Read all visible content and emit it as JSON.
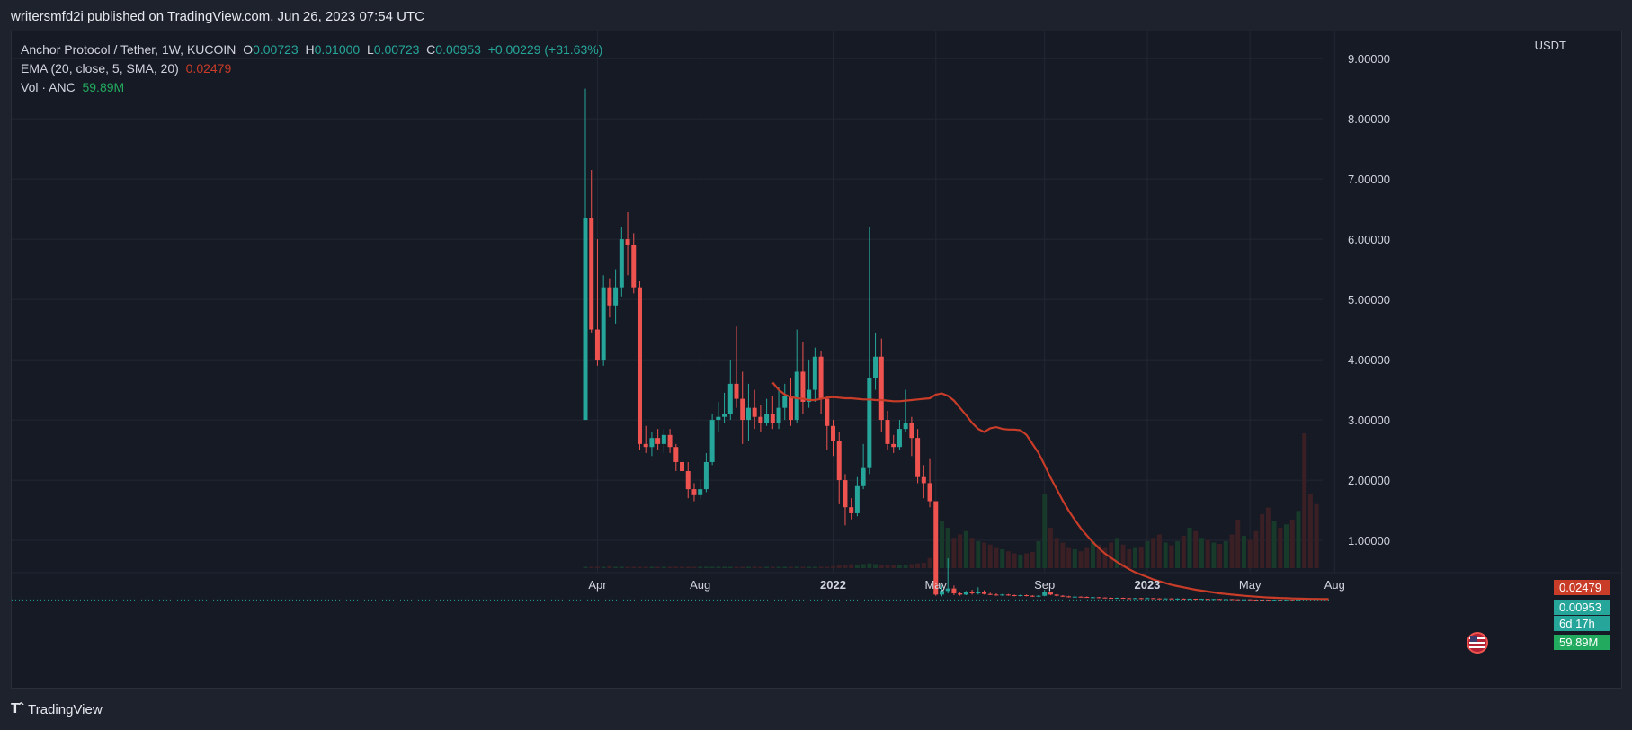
{
  "publication": "writersmfd2i published on TradingView.com, Jun 26, 2023 07:54 UTC",
  "legend": {
    "symbol": "Anchor Protocol / Tether, 1W, KUCOIN",
    "o_label": "O",
    "o": "0.00723",
    "h_label": "H",
    "h": "0.01000",
    "l_label": "L",
    "l": "0.00723",
    "c_label": "C",
    "c": "0.00953",
    "change": "+0.00229 (+31.63%)",
    "ema_label": "EMA (20, close, 5, SMA, 20)",
    "ema_value": "0.02479",
    "vol_label": "Vol · ANC",
    "vol_value": "59.89M"
  },
  "currency": "USDT",
  "badges": {
    "ema": "0.02479",
    "price": "0.00953",
    "countdown": "6d 17h",
    "volume": "59.89M"
  },
  "footer": {
    "brand": "TradingView"
  },
  "colors": {
    "up": "#26a69a",
    "down": "#ef5350",
    "ema": "#c83c28",
    "volume_green": "#22ab5e",
    "grid": "#232733"
  },
  "chart_data": {
    "type": "candlestick",
    "y_axis": {
      "ticks": [
        "9.00000",
        "8.00000",
        "7.00000",
        "6.00000",
        "5.00000",
        "4.00000",
        "3.00000",
        "2.00000",
        "1.00000"
      ],
      "range": [
        -0.85,
        9.3
      ],
      "unit": "USDT"
    },
    "x_axis": {
      "ticks": [
        {
          "label": "Apr",
          "idx": 2,
          "bold": false
        },
        {
          "label": "Aug",
          "idx": 19,
          "bold": false
        },
        {
          "label": "2022",
          "idx": 41,
          "bold": true
        },
        {
          "label": "May",
          "idx": 58,
          "bold": false
        },
        {
          "label": "Sep",
          "idx": 76,
          "bold": false
        },
        {
          "label": "2023",
          "idx": 93,
          "bold": true
        },
        {
          "label": "May",
          "idx": 110,
          "bold": false
        },
        {
          "label": "Aug",
          "idx": 124,
          "bold": false
        }
      ]
    },
    "candles": [
      [
        3.0,
        6.35,
        8.5,
        3.0
      ],
      [
        6.35,
        4.5,
        7.15,
        4.45
      ],
      [
        4.5,
        4.0,
        6.0,
        3.9
      ],
      [
        4.0,
        5.2,
        5.4,
        3.9
      ],
      [
        5.2,
        4.9,
        5.35,
        4.7
      ],
      [
        4.9,
        5.2,
        5.5,
        4.6
      ],
      [
        5.2,
        6.0,
        6.2,
        5.05
      ],
      [
        6.0,
        5.9,
        6.45,
        5.4
      ],
      [
        5.9,
        5.2,
        6.1,
        5.1
      ],
      [
        5.2,
        2.6,
        5.3,
        2.5
      ],
      [
        2.6,
        2.55,
        2.9,
        2.45
      ],
      [
        2.55,
        2.7,
        2.8,
        2.4
      ],
      [
        2.7,
        2.6,
        2.85,
        2.5
      ],
      [
        2.6,
        2.75,
        2.85,
        2.45
      ],
      [
        2.75,
        2.55,
        2.85,
        2.45
      ],
      [
        2.55,
        2.3,
        2.6,
        2.15
      ],
      [
        2.3,
        2.15,
        2.4,
        2.0
      ],
      [
        2.15,
        1.85,
        2.3,
        1.7
      ],
      [
        1.85,
        1.75,
        1.95,
        1.65
      ],
      [
        1.75,
        1.85,
        2.0,
        1.7
      ],
      [
        1.85,
        2.3,
        2.45,
        1.8
      ],
      [
        2.3,
        3.0,
        3.1,
        2.25
      ],
      [
        3.0,
        3.05,
        3.3,
        2.8
      ],
      [
        3.05,
        3.1,
        3.45,
        2.95
      ],
      [
        3.1,
        3.6,
        4.0,
        3.0
      ],
      [
        3.6,
        3.35,
        4.55,
        3.2
      ],
      [
        3.35,
        3.0,
        3.8,
        2.6
      ],
      [
        3.0,
        3.2,
        3.6,
        2.65
      ],
      [
        3.2,
        3.05,
        3.5,
        2.85
      ],
      [
        3.05,
        2.95,
        3.25,
        2.8
      ],
      [
        2.95,
        3.1,
        3.35,
        2.9
      ],
      [
        3.1,
        2.95,
        3.4,
        2.85
      ],
      [
        2.95,
        3.2,
        3.55,
        2.85
      ],
      [
        3.2,
        3.4,
        3.6,
        3.0
      ],
      [
        3.4,
        3.0,
        3.7,
        2.9
      ],
      [
        3.0,
        3.8,
        4.5,
        2.95
      ],
      [
        3.8,
        3.3,
        4.3,
        3.1
      ],
      [
        3.3,
        3.5,
        4.0,
        3.2
      ],
      [
        3.5,
        4.05,
        4.2,
        3.3
      ],
      [
        4.05,
        3.35,
        4.15,
        3.1
      ],
      [
        3.35,
        2.9,
        3.4,
        2.5
      ],
      [
        2.9,
        2.65,
        3.0,
        2.4
      ],
      [
        2.65,
        2.0,
        2.8,
        1.6
      ],
      [
        2.0,
        1.55,
        2.1,
        1.25
      ],
      [
        1.55,
        1.45,
        1.7,
        1.35
      ],
      [
        1.45,
        1.9,
        2.05,
        1.4
      ],
      [
        1.9,
        2.2,
        2.6,
        1.85
      ],
      [
        2.2,
        3.7,
        6.2,
        2.1
      ],
      [
        3.7,
        4.05,
        4.45,
        3.5
      ],
      [
        4.05,
        3.0,
        4.35,
        2.8
      ],
      [
        3.0,
        2.6,
        3.15,
        2.5
      ],
      [
        2.6,
        2.55,
        2.75,
        2.45
      ],
      [
        2.55,
        2.85,
        3.0,
        2.5
      ],
      [
        2.85,
        2.95,
        3.5,
        2.8
      ],
      [
        2.95,
        2.7,
        3.05,
        2.4
      ],
      [
        2.7,
        2.05,
        2.85,
        1.95
      ],
      [
        2.05,
        1.95,
        2.25,
        1.7
      ],
      [
        1.95,
        1.65,
        2.35,
        1.55
      ],
      [
        1.65,
        0.1,
        1.65,
        0.08
      ],
      [
        0.1,
        0.16,
        0.25,
        0.07
      ],
      [
        0.16,
        0.2,
        0.7,
        0.12
      ],
      [
        0.2,
        0.12,
        0.25,
        0.09
      ],
      [
        0.12,
        0.1,
        0.15,
        0.08
      ],
      [
        0.1,
        0.14,
        0.16,
        0.09
      ],
      [
        0.14,
        0.12,
        0.18,
        0.1
      ],
      [
        0.12,
        0.15,
        0.22,
        0.1
      ],
      [
        0.15,
        0.11,
        0.17,
        0.1
      ],
      [
        0.11,
        0.1,
        0.13,
        0.09
      ],
      [
        0.1,
        0.09,
        0.12,
        0.08
      ],
      [
        0.09,
        0.1,
        0.11,
        0.08
      ],
      [
        0.1,
        0.09,
        0.11,
        0.08
      ],
      [
        0.09,
        0.08,
        0.1,
        0.07
      ],
      [
        0.08,
        0.09,
        0.1,
        0.07
      ],
      [
        0.09,
        0.08,
        0.1,
        0.07
      ],
      [
        0.08,
        0.07,
        0.09,
        0.06
      ],
      [
        0.07,
        0.08,
        0.09,
        0.06
      ],
      [
        0.08,
        0.14,
        0.18,
        0.07
      ],
      [
        0.14,
        0.1,
        0.15,
        0.09
      ],
      [
        0.1,
        0.08,
        0.11,
        0.07
      ],
      [
        0.08,
        0.07,
        0.09,
        0.06
      ],
      [
        0.07,
        0.06,
        0.08,
        0.05
      ],
      [
        0.06,
        0.065,
        0.08,
        0.05
      ],
      [
        0.065,
        0.06,
        0.07,
        0.05
      ],
      [
        0.06,
        0.05,
        0.07,
        0.045
      ],
      [
        0.05,
        0.055,
        0.06,
        0.045
      ],
      [
        0.055,
        0.05,
        0.06,
        0.04
      ],
      [
        0.05,
        0.045,
        0.055,
        0.04
      ],
      [
        0.045,
        0.04,
        0.05,
        0.035
      ],
      [
        0.04,
        0.045,
        0.05,
        0.035
      ],
      [
        0.045,
        0.04,
        0.05,
        0.035
      ],
      [
        0.04,
        0.035,
        0.045,
        0.03
      ],
      [
        0.035,
        0.04,
        0.045,
        0.03
      ],
      [
        0.04,
        0.035,
        0.045,
        0.03
      ],
      [
        0.035,
        0.04,
        0.05,
        0.03
      ],
      [
        0.04,
        0.035,
        0.045,
        0.03
      ],
      [
        0.035,
        0.03,
        0.04,
        0.025
      ],
      [
        0.03,
        0.035,
        0.04,
        0.025
      ],
      [
        0.035,
        0.03,
        0.04,
        0.025
      ],
      [
        0.03,
        0.032,
        0.04,
        0.025
      ],
      [
        0.032,
        0.028,
        0.035,
        0.022
      ],
      [
        0.028,
        0.03,
        0.035,
        0.022
      ],
      [
        0.03,
        0.026,
        0.033,
        0.02
      ],
      [
        0.026,
        0.028,
        0.032,
        0.02
      ],
      [
        0.028,
        0.024,
        0.03,
        0.018
      ],
      [
        0.024,
        0.026,
        0.03,
        0.018
      ],
      [
        0.026,
        0.022,
        0.028,
        0.016
      ],
      [
        0.022,
        0.024,
        0.028,
        0.016
      ],
      [
        0.024,
        0.02,
        0.026,
        0.015
      ],
      [
        0.02,
        0.018,
        0.022,
        0.013
      ],
      [
        0.018,
        0.02,
        0.022,
        0.013
      ],
      [
        0.02,
        0.016,
        0.021,
        0.012
      ],
      [
        0.016,
        0.015,
        0.018,
        0.011
      ],
      [
        0.015,
        0.014,
        0.017,
        0.01
      ],
      [
        0.014,
        0.012,
        0.015,
        0.009
      ],
      [
        0.012,
        0.013,
        0.015,
        0.009
      ],
      [
        0.013,
        0.01,
        0.014,
        0.008
      ],
      [
        0.01,
        0.011,
        0.012,
        0.008
      ],
      [
        0.011,
        0.0072,
        0.012,
        0.0068
      ],
      [
        0.0072,
        0.0095,
        0.01,
        0.0072
      ]
    ],
    "ema": [
      3.62,
      3.5,
      3.42,
      3.38,
      3.36,
      3.35,
      3.33,
      3.33,
      3.35,
      3.37,
      3.38,
      3.37,
      3.36,
      3.36,
      3.35,
      3.34,
      3.34,
      3.33,
      3.33,
      3.32,
      3.31,
      3.31,
      3.32,
      3.33,
      3.34,
      3.35,
      3.36,
      3.42,
      3.44,
      3.4,
      3.32,
      3.2,
      3.08,
      2.95,
      2.85,
      2.8,
      2.86,
      2.88,
      2.85,
      2.84,
      2.84,
      2.83,
      2.75,
      2.6,
      2.45,
      2.25,
      2.04,
      1.85,
      1.66,
      1.49,
      1.34,
      1.2,
      1.08,
      0.97,
      0.87,
      0.78,
      0.71,
      0.64,
      0.58,
      0.52,
      0.47,
      0.43,
      0.39,
      0.35,
      0.32,
      0.29,
      0.26,
      0.24,
      0.22,
      0.2,
      0.18,
      0.165,
      0.15,
      0.135,
      0.12,
      0.11,
      0.1,
      0.09,
      0.08,
      0.072,
      0.065,
      0.058,
      0.052,
      0.047,
      0.043,
      0.039,
      0.035,
      0.032,
      0.03,
      0.028,
      0.027,
      0.026,
      0.025
    ],
    "ema_start_idx": 31,
    "volume": [
      2,
      2,
      2,
      2,
      3,
      2,
      2,
      2,
      2,
      2,
      2,
      2,
      2,
      2,
      2,
      2,
      2,
      2,
      2,
      2,
      2,
      2,
      2,
      2,
      2,
      2,
      2,
      2,
      2,
      2,
      2,
      2,
      2,
      2,
      2,
      2,
      2,
      2,
      2,
      2,
      2,
      3,
      4,
      5,
      6,
      5,
      6,
      7,
      6,
      5,
      5,
      4,
      4,
      5,
      6,
      7,
      8,
      15,
      30,
      70,
      60,
      45,
      50,
      55,
      45,
      40,
      38,
      35,
      30,
      28,
      25,
      22,
      20,
      22,
      24,
      40,
      110,
      60,
      45,
      38,
      30,
      28,
      25,
      30,
      40,
      35,
      30,
      38,
      45,
      35,
      28,
      30,
      32,
      40,
      45,
      50,
      38,
      34,
      40,
      48,
      60,
      55,
      45,
      42,
      38,
      36,
      40,
      50,
      72,
      48,
      42,
      55,
      80,
      90,
      70,
      60,
      65,
      72,
      85,
      200,
      110,
      95
    ],
    "last": {
      "ema": 0.02479,
      "close": 0.00953,
      "volume": "59.89M"
    }
  }
}
